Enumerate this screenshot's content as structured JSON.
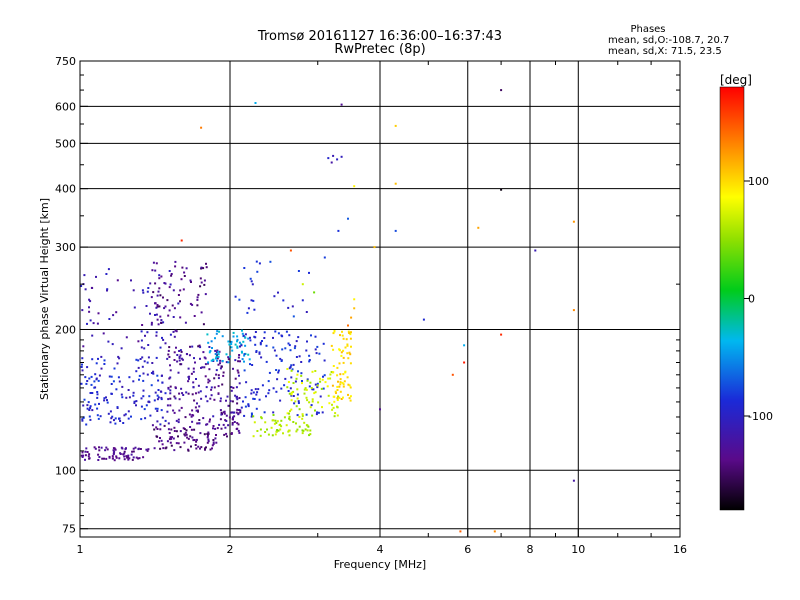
{
  "chart_data": {
    "type": "scatter",
    "title": "Tromsø 20161127 16:36:00–16:37:43",
    "subtitle": "RwPretec (8p)",
    "xlabel": "Frequency [MHz]",
    "ylabel": "Stationary phase Virtual Height [km]",
    "x_scale": "log",
    "y_scale": "log",
    "xlim": [
      1,
      16
    ],
    "ylim": [
      72,
      750
    ],
    "x_ticks": [
      1,
      2,
      4,
      6,
      8,
      10,
      16
    ],
    "x_tick_labels": [
      "1",
      "2",
      "4",
      "6",
      "8",
      "10",
      "16"
    ],
    "y_ticks": [
      75,
      100,
      200,
      300,
      400,
      500,
      600,
      750
    ],
    "y_tick_labels": [
      "75",
      "100",
      "200",
      "300",
      "400",
      "500",
      "600",
      "750"
    ],
    "grid": true,
    "stats": {
      "heading": "Phases",
      "line_o": "mean, sd,O:-108.7, 20.7",
      "line_x": "mean, sd,X:  71.5, 23.5"
    },
    "colorbar": {
      "label": "[deg]",
      "min": -180,
      "max": 180,
      "ticks": [
        100,
        0,
        -100
      ],
      "tick_labels": [
        "100",
        "0",
        "-100"
      ]
    },
    "clusters": [
      {
        "f": [
          1.0,
          1.4
        ],
        "h": [
          105,
          112
        ],
        "phase": [
          -145,
          -120
        ],
        "n": 80
      },
      {
        "f": [
          1.4,
          1.9
        ],
        "h": [
          110,
          125
        ],
        "phase": [
          -155,
          -125
        ],
        "n": 90
      },
      {
        "f": [
          1.9,
          2.1
        ],
        "h": [
          118,
          135
        ],
        "phase": [
          -150,
          -120
        ],
        "n": 30
      },
      {
        "f": [
          1.0,
          1.5
        ],
        "h": [
          125,
          175
        ],
        "phase": [
          -115,
          -75
        ],
        "n": 170
      },
      {
        "f": [
          1.5,
          2.1
        ],
        "h": [
          125,
          185
        ],
        "phase": [
          -150,
          -105
        ],
        "n": 200
      },
      {
        "f": [
          1.0,
          1.6
        ],
        "h": [
          180,
          270
        ],
        "phase": [
          -135,
          -95
        ],
        "n": 90
      },
      {
        "f": [
          1.4,
          1.8
        ],
        "h": [
          205,
          280
        ],
        "phase": [
          -155,
          -120
        ],
        "n": 60
      },
      {
        "f": [
          1.8,
          2.2
        ],
        "h": [
          170,
          200
        ],
        "phase": [
          -55,
          -25
        ],
        "n": 60
      },
      {
        "f": [
          2.1,
          3.1
        ],
        "h": [
          130,
          200
        ],
        "phase": [
          -105,
          -75
        ],
        "n": 140
      },
      {
        "f": [
          2.2,
          2.9
        ],
        "h": [
          118,
          132
        ],
        "phase": [
          45,
          75
        ],
        "n": 60
      },
      {
        "f": [
          2.6,
          3.3
        ],
        "h": [
          130,
          165
        ],
        "phase": [
          50,
          85
        ],
        "n": 70
      },
      {
        "f": [
          3.2,
          3.5
        ],
        "h": [
          140,
          200
        ],
        "phase": [
          85,
          115
        ],
        "n": 70
      },
      {
        "f": [
          2.0,
          2.9
        ],
        "h": [
          210,
          280
        ],
        "phase": [
          -110,
          -70
        ],
        "n": 25
      }
    ],
    "points": [
      {
        "f": 3.15,
        "h": 465,
        "phase": -95
      },
      {
        "f": 3.22,
        "h": 470,
        "phase": -110
      },
      {
        "f": 3.28,
        "h": 462,
        "phase": -100
      },
      {
        "f": 3.35,
        "h": 468,
        "phase": -105
      },
      {
        "f": 3.2,
        "h": 455,
        "phase": -120
      },
      {
        "f": 2.25,
        "h": 610,
        "phase": -40
      },
      {
        "f": 3.35,
        "h": 605,
        "phase": -130
      },
      {
        "f": 1.75,
        "h": 540,
        "phase": 135
      },
      {
        "f": 4.3,
        "h": 545,
        "phase": 105
      },
      {
        "f": 4.3,
        "h": 410,
        "phase": 110
      },
      {
        "f": 3.55,
        "h": 405,
        "phase": 90
      },
      {
        "f": 3.45,
        "h": 345,
        "phase": -70
      },
      {
        "f": 3.3,
        "h": 325,
        "phase": -85
      },
      {
        "f": 4.3,
        "h": 325,
        "phase": -75
      },
      {
        "f": 6.3,
        "h": 330,
        "phase": 120
      },
      {
        "f": 9.8,
        "h": 340,
        "phase": 125
      },
      {
        "f": 3.9,
        "h": 300,
        "phase": 110
      },
      {
        "f": 2.65,
        "h": 295,
        "phase": 150
      },
      {
        "f": 3.1,
        "h": 285,
        "phase": -80
      },
      {
        "f": 1.6,
        "h": 310,
        "phase": 165
      },
      {
        "f": 7.0,
        "h": 650,
        "phase": -150
      },
      {
        "f": 7.0,
        "h": 398,
        "phase": -175
      },
      {
        "f": 8.2,
        "h": 295,
        "phase": -110
      },
      {
        "f": 9.8,
        "h": 220,
        "phase": 130
      },
      {
        "f": 4.9,
        "h": 210,
        "phase": -90
      },
      {
        "f": 7.0,
        "h": 195,
        "phase": 165
      },
      {
        "f": 5.9,
        "h": 185,
        "phase": -40
      },
      {
        "f": 5.9,
        "h": 170,
        "phase": 170
      },
      {
        "f": 5.6,
        "h": 160,
        "phase": 150
      },
      {
        "f": 4.0,
        "h": 135,
        "phase": -130
      },
      {
        "f": 9.8,
        "h": 95,
        "phase": -120
      },
      {
        "f": 5.8,
        "h": 74,
        "phase": 145
      },
      {
        "f": 6.8,
        "h": 74,
        "phase": 130
      },
      {
        "f": 3.55,
        "h": 232,
        "phase": 90
      },
      {
        "f": 3.55,
        "h": 222,
        "phase": 110
      },
      {
        "f": 3.5,
        "h": 212,
        "phase": 120
      },
      {
        "f": 3.45,
        "h": 204,
        "phase": 140
      },
      {
        "f": 2.95,
        "h": 240,
        "phase": 40
      },
      {
        "f": 2.8,
        "h": 250,
        "phase": 70
      }
    ]
  }
}
